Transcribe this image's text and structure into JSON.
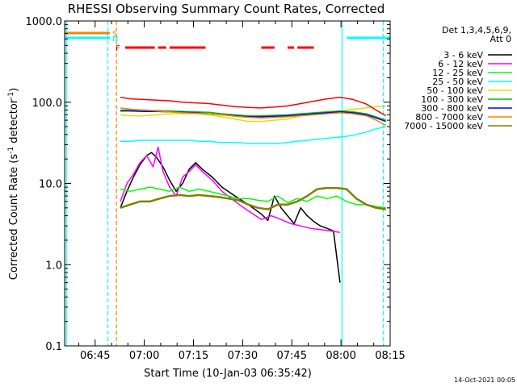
{
  "chart_data": {
    "type": "line",
    "title": "RHESSI Observing Summary Count Rates, Corrected",
    "xlabel": "Start Time (10-Jan-03 06:35:42)",
    "ylabel_parts": {
      "main": "Corrected Count Rate (s",
      "sup1": "-1",
      "mid": " detector",
      "sup2": "-1",
      "end": ")"
    },
    "y_scale": "log",
    "ylim": [
      0.1,
      1000
    ],
    "y_ticks": [
      {
        "v": 1000,
        "label": "1000.0"
      },
      {
        "v": 100,
        "label": "100.0"
      },
      {
        "v": 10,
        "label": "10.0"
      },
      {
        "v": 1,
        "label": "1.0"
      },
      {
        "v": 0.1,
        "label": "0.1"
      }
    ],
    "x_range_min": [
      0,
      99.3
    ],
    "x_ticks": [
      {
        "v": 9.3,
        "label": "06:45"
      },
      {
        "v": 24.3,
        "label": "07:00"
      },
      {
        "v": 39.3,
        "label": "07:15"
      },
      {
        "v": 54.3,
        "label": "07:30"
      },
      {
        "v": 69.3,
        "label": "07:45"
      },
      {
        "v": 84.3,
        "label": "08:00"
      },
      {
        "v": 99.3,
        "label": "08:15"
      }
    ],
    "legend_header": [
      "Det 1,3,4,5,6,9,",
      "Att 0"
    ],
    "series": [
      {
        "name": "3 - 6 keV",
        "color": "#000000",
        "x": [
          17.0,
          19.0,
          21.0,
          23.0,
          25.0,
          26.5,
          28.0,
          30.0,
          32.0,
          34.0,
          36.0,
          38.0,
          40.0,
          42.0,
          45.0,
          48.0,
          52.0,
          56.0,
          60.0,
          62.0,
          64.0,
          66.0,
          68.0,
          70.0,
          72.0,
          74.0,
          76.0,
          78.0,
          80.0,
          82.0,
          84.0
        ],
        "y": [
          5,
          8,
          12,
          17,
          22,
          24,
          21,
          16,
          11,
          8,
          10,
          15,
          18,
          15,
          12,
          9,
          7,
          5.5,
          4.2,
          3.5,
          7,
          5,
          4,
          3.2,
          5,
          4,
          3.4,
          3,
          2.8,
          2.6,
          0.6
        ]
      },
      {
        "name": "6 - 12 keV",
        "color": "#ff00ff",
        "x": [
          17.0,
          19.0,
          21.0,
          23.0,
          25.0,
          27.0,
          28.5,
          30.0,
          32.0,
          34.0,
          36.0,
          38.0,
          40.0,
          42.0,
          45.0,
          48.0,
          52.0,
          56.0,
          60.0,
          63.0,
          66.0,
          69.0,
          72.0,
          75.0,
          78.0,
          81.0,
          84.0
        ],
        "y": [
          6,
          10,
          13,
          18,
          22,
          16,
          28,
          14,
          9,
          7,
          12,
          14,
          17,
          14,
          11,
          8,
          6,
          4.6,
          3.6,
          4,
          3.6,
          3.2,
          3,
          2.8,
          2.7,
          2.6,
          2.5
        ]
      },
      {
        "name": "12 - 25 keV",
        "color": "#00ff00",
        "x": [
          17.0,
          20.0,
          23.0,
          26.0,
          29.0,
          32.0,
          35.0,
          38.0,
          41.0,
          44.0,
          47.0,
          50.0,
          53.0,
          56.0,
          59.0,
          62.0,
          65.0,
          68.0,
          71.0,
          74.0,
          77.0,
          80.0,
          83.0,
          86.0,
          89.0,
          92.0,
          95.0,
          98.0
        ],
        "y": [
          8.5,
          8,
          8.5,
          9,
          8.5,
          8,
          9,
          8,
          8.5,
          8,
          7.5,
          7,
          6.5,
          6.5,
          6.2,
          6,
          7,
          5.8,
          6.5,
          6,
          7,
          6.5,
          7,
          6,
          5.5,
          5.5,
          5.2,
          5
        ]
      },
      {
        "name": "25 - 50 keV",
        "color": "#00ffff",
        "x": [
          17.0,
          20.0,
          23.0,
          26.0,
          29.0,
          32.0,
          35.0,
          38.0,
          41.0,
          44.0,
          47.0,
          50.0,
          53.0,
          56.0,
          59.0,
          62.0,
          65.0,
          68.0,
          71.0,
          74.0,
          77.0,
          80.0,
          83.0,
          86.0,
          89.0,
          92.0,
          95.0,
          98.0
        ],
        "y": [
          33,
          33,
          34,
          34,
          34,
          34,
          34,
          34,
          33,
          33,
          32,
          32,
          32,
          31,
          31,
          31,
          31,
          32,
          33,
          34,
          35,
          36,
          37,
          38,
          40,
          43,
          47,
          50
        ]
      },
      {
        "name": "50 - 100 keV",
        "color": "#e0e000",
        "x": [
          17.0,
          20.0,
          24.0,
          28.0,
          32.0,
          36.0,
          40.0,
          44.0,
          48.0,
          52.0,
          56.0,
          60.0,
          64.0,
          68.0,
          72.0,
          76.0,
          80.0,
          84.0,
          88.0,
          92.0,
          95.0,
          98.0
        ],
        "y": [
          70,
          68,
          68,
          70,
          72,
          72,
          72,
          70,
          66,
          62,
          58,
          58,
          60,
          62,
          68,
          72,
          75,
          78,
          82,
          85,
          88,
          90
        ]
      },
      {
        "name": "100 - 300 keV",
        "color": "#00c000",
        "x": [
          17.0,
          20.0,
          24.0,
          28.0,
          32.0,
          36.0,
          40.0,
          44.0,
          48.0,
          52.0,
          56.0,
          60.0,
          64.0,
          68.0,
          72.0,
          76.0,
          80.0,
          84.0,
          88.0,
          92.0,
          95.0,
          98.0
        ],
        "y": [
          80,
          80,
          80,
          79,
          78,
          77,
          76,
          75,
          72,
          70,
          68,
          68,
          69,
          70,
          72,
          74,
          76,
          78,
          76,
          72,
          66,
          60
        ]
      },
      {
        "name": "300 - 800 keV",
        "color": "#0000ff",
        "x": [
          17.0,
          20.0,
          24.0,
          28.0,
          32.0,
          36.0,
          40.0,
          44.0,
          48.0,
          52.0,
          56.0,
          60.0,
          64.0,
          68.0,
          72.0,
          76.0,
          80.0,
          84.0,
          88.0,
          92.0,
          95.0,
          98.0
        ],
        "y": [
          78,
          78,
          77,
          77,
          76,
          75,
          74,
          72,
          70,
          68,
          66,
          66,
          67,
          68,
          70,
          72,
          74,
          76,
          74,
          70,
          64,
          58
        ]
      },
      {
        "name": "800 - 7000 keV",
        "color": "#ff8000",
        "x": [
          17.0,
          20.0,
          24.0,
          28.0,
          32.0,
          36.0,
          40.0,
          44.0,
          48.0,
          52.0,
          56.0,
          60.0,
          64.0,
          68.0,
          72.0,
          76.0,
          80.0,
          84.0,
          88.0,
          92.0,
          95.0,
          98.0
        ],
        "y": [
          85,
          82,
          80,
          78,
          76,
          74,
          73,
          72,
          70,
          67,
          65,
          64,
          65,
          66,
          68,
          70,
          72,
          74,
          72,
          68,
          60,
          52
        ]
      },
      {
        "name": "7000 - 15000 keV",
        "color": "#808000",
        "x": [
          17.0,
          20.0,
          23.0,
          26.0,
          29.0,
          32.0,
          35.0,
          38.0,
          41.0,
          44.0,
          47.0,
          50.0,
          53.0,
          56.0,
          59.0,
          62.0,
          65.0,
          68.0,
          71.0,
          74.0,
          77.0,
          80.0,
          83.0,
          86.0,
          89.0,
          92.0,
          95.0,
          98.0
        ],
        "y": [
          5,
          5.5,
          6,
          6,
          6.5,
          7,
          7.2,
          7,
          7.2,
          7,
          6.8,
          6.5,
          6.2,
          5.5,
          5,
          4.8,
          5.5,
          5.5,
          6,
          7,
          8.5,
          8.8,
          8.8,
          8.5,
          6.5,
          5.5,
          5,
          4.8
        ]
      },
      {
        "name": "",
        "color": "#ff0000",
        "x": [
          17.0,
          20.0,
          24.0,
          28.0,
          32.0,
          36.0,
          40.0,
          44.0,
          48.0,
          52.0,
          56.0,
          60.0,
          64.0,
          68.0,
          72.0,
          76.0,
          80.0,
          84.0,
          88.0,
          92.0,
          95.0,
          98.0
        ],
        "y": [
          115,
          110,
          108,
          106,
          104,
          100,
          98,
          96,
          92,
          88,
          86,
          85,
          87,
          90,
          96,
          103,
          110,
          115,
          108,
          95,
          80,
          68
        ]
      }
    ],
    "flags": [
      {
        "label": "S",
        "color": "#ff8000",
        "segments": [
          [
            0,
            13.8
          ]
        ],
        "level": "top"
      },
      {
        "label": "N",
        "color": "#00ffff",
        "segments": [
          [
            0,
            13.8
          ],
          [
            86,
            99.3
          ]
        ],
        "level": "second"
      },
      {
        "label": "F",
        "color": "#ff0000",
        "segments": [
          [
            18.5,
            27.5
          ],
          [
            28.5,
            31
          ],
          [
            32,
            43
          ],
          [
            60,
            64
          ],
          [
            68,
            70
          ],
          [
            71,
            76
          ]
        ],
        "level": "third"
      }
    ],
    "vlines": [
      {
        "x": 0.5,
        "color": "#00ffff",
        "style": "solid"
      },
      {
        "x": 13.2,
        "color": "#00ffff",
        "style": "dashed"
      },
      {
        "x": 15.8,
        "color": "#ff8000",
        "style": "dashed"
      },
      {
        "x": 84.6,
        "color": "#00ffff",
        "style": "solid"
      },
      {
        "x": 97.2,
        "color": "#00ffff",
        "style": "dashed"
      }
    ],
    "grid": false,
    "legend_position": "top-right"
  },
  "footer_date": "14-Oct-2021 00:05"
}
